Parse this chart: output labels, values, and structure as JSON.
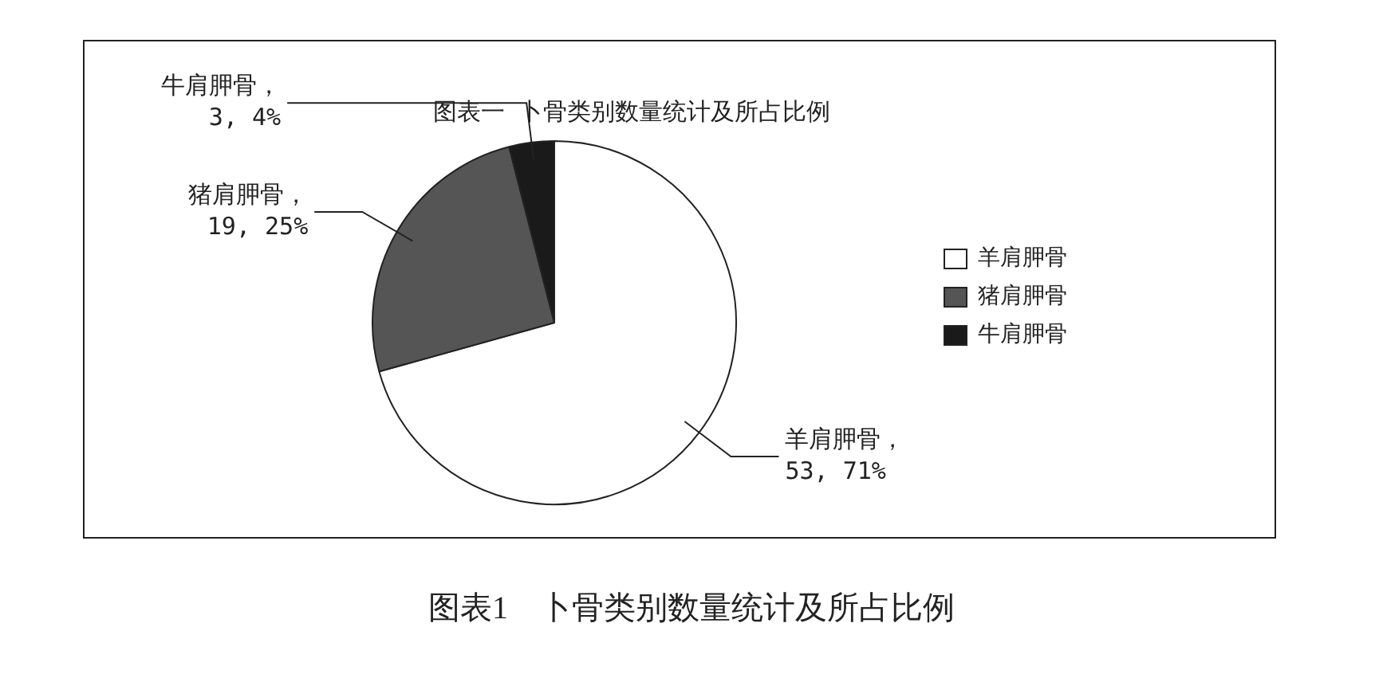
{
  "chart_data": {
    "type": "pie",
    "title": "图表一 卜骨类别数量统计及所占比例",
    "categories": [
      "羊肩胛骨",
      "猪肩胛骨",
      "牛肩胛骨"
    ],
    "values": [
      53,
      19,
      3
    ],
    "value_labels": [
      "羊肩胛骨，\n53, 71%",
      "猪肩胛骨，\n19, 25%",
      "牛肩胛骨，\n3, 4%"
    ],
    "colors": [
      "#ffffff",
      "#555555",
      "#1a1a1a"
    ],
    "legend": "right",
    "annotations": [
      "图表1　卜骨类别数量统计及所占比例"
    ]
  }
}
